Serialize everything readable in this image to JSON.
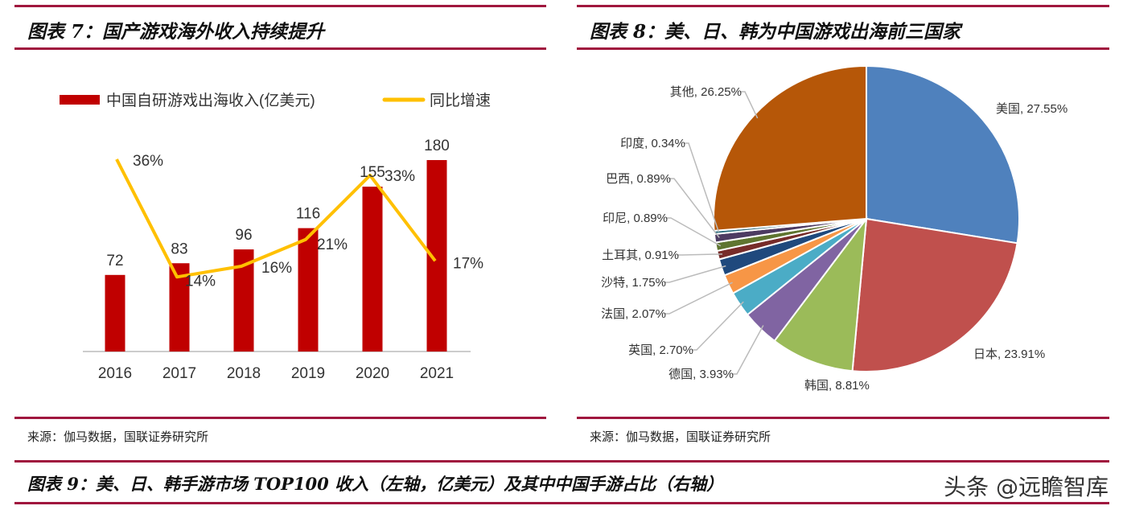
{
  "figure7": {
    "title": "图表 7：国产游戏海外收入持续提升",
    "source": "来源：伽马数据，国联证券研究所"
  },
  "figure8": {
    "title": "图表 8：美、日、韩为中国游戏出海前三国家",
    "source": "来源：伽马数据，国联证券研究所"
  },
  "figure9": {
    "title": "图表 9：美、日、韩手游市场 TOP100 收入（左轴，亿美元）及其中中国手游占比（右轴）"
  },
  "watermark": "头条 @远瞻智库",
  "chart_data": [
    {
      "type": "bar",
      "categories": [
        "2016",
        "2017",
        "2018",
        "2019",
        "2020",
        "2021"
      ],
      "series": [
        {
          "name": "中国自研游戏出海收入(亿美元)",
          "type": "bar",
          "values": [
            72,
            83,
            96,
            116,
            155,
            180
          ],
          "color": "#c00000",
          "data_labels": [
            "72",
            "83",
            "96",
            "116",
            "155",
            "180"
          ]
        },
        {
          "name": "同比增速",
          "type": "line",
          "values": [
            36,
            14,
            16,
            21,
            33,
            17
          ],
          "color": "#ffc000",
          "data_labels": [
            "36%",
            "14%",
            "16%",
            "21%",
            "33%",
            "17%"
          ]
        }
      ],
      "legend": "top",
      "grid": false
    },
    {
      "type": "pie",
      "slices": [
        {
          "label": "美国",
          "value": 27.55,
          "text": "美国, 27.55%",
          "color": "#4f81bd"
        },
        {
          "label": "日本",
          "value": 23.91,
          "text": "日本, 23.91%",
          "color": "#c0504d"
        },
        {
          "label": "韩国",
          "value": 8.81,
          "text": "韩国, 8.81%",
          "color": "#9bbb59"
        },
        {
          "label": "德国",
          "value": 3.93,
          "text": "德国, 3.93%",
          "color": "#8064a2"
        },
        {
          "label": "英国",
          "value": 2.7,
          "text": "英国, 2.70%",
          "color": "#4bacc6"
        },
        {
          "label": "法国",
          "value": 2.07,
          "text": "法国, 2.07%",
          "color": "#f79646"
        },
        {
          "label": "沙特",
          "value": 1.75,
          "text": "沙特, 1.75%",
          "color": "#1f497d"
        },
        {
          "label": "土耳其",
          "value": 0.91,
          "text": "土耳其, 0.91%",
          "color": "#772c2a"
        },
        {
          "label": "印尼",
          "value": 0.89,
          "text": "印尼, 0.89%",
          "color": "#5f7530"
        },
        {
          "label": "巴西",
          "value": 0.89,
          "text": "巴西, 0.89%",
          "color": "#4d3b62"
        },
        {
          "label": "印度",
          "value": 0.34,
          "text": "印度, 0.34%",
          "color": "#276a7c"
        },
        {
          "label": "其他",
          "value": 26.25,
          "text": "其他, 26.25%",
          "color": "#b65708"
        }
      ]
    }
  ]
}
